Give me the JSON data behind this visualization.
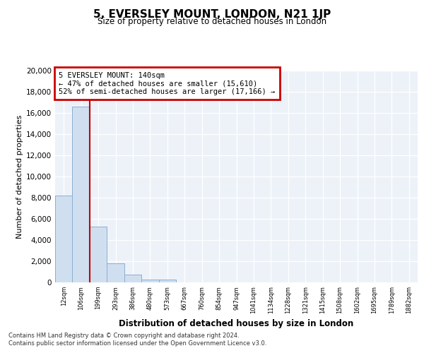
{
  "title": "5, EVERSLEY MOUNT, LONDON, N21 1JP",
  "subtitle": "Size of property relative to detached houses in London",
  "xlabel": "Distribution of detached houses by size in London",
  "ylabel": "Number of detached properties",
  "bar_labels": [
    "12sqm",
    "106sqm",
    "199sqm",
    "293sqm",
    "386sqm",
    "480sqm",
    "573sqm",
    "667sqm",
    "760sqm",
    "854sqm",
    "947sqm",
    "1041sqm",
    "1134sqm",
    "1228sqm",
    "1321sqm",
    "1415sqm",
    "1508sqm",
    "1602sqm",
    "1695sqm",
    "1789sqm",
    "1882sqm"
  ],
  "bar_values": [
    8200,
    16600,
    5300,
    1800,
    750,
    300,
    300,
    0,
    0,
    0,
    0,
    0,
    0,
    0,
    0,
    0,
    0,
    0,
    0,
    0,
    0
  ],
  "bar_color": "#d0dff0",
  "bar_edge_color": "#8aaed0",
  "annotation_line1": "5 EVERSLEY MOUNT: 140sqm",
  "annotation_line2": "← 47% of detached houses are smaller (15,610)",
  "annotation_line3": "52% of semi-detached houses are larger (17,166) →",
  "annotation_box_color": "#cc0000",
  "ylim": [
    0,
    20000
  ],
  "yticks": [
    0,
    2000,
    4000,
    6000,
    8000,
    10000,
    12000,
    14000,
    16000,
    18000,
    20000
  ],
  "footnote1": "Contains HM Land Registry data © Crown copyright and database right 2024.",
  "footnote2": "Contains public sector information licensed under the Open Government Licence v3.0.",
  "background_color": "#edf2f9",
  "grid_color": "#ffffff",
  "property_line_x": 1.5
}
